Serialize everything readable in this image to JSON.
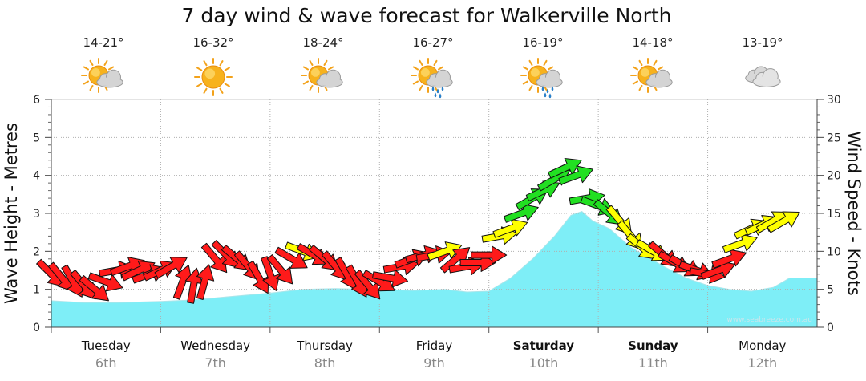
{
  "chart_data": {
    "type": "area",
    "title": "7 day wind & wave forecast for Walkerville North",
    "y_left_label": "Wave Height - Metres",
    "y_right_label": "Wind Speed - Knots",
    "y_left_range": [
      0,
      6
    ],
    "y_left_ticks": [
      "0",
      "1",
      "2",
      "3",
      "4",
      "5",
      "6"
    ],
    "y_right_range": [
      0,
      30
    ],
    "y_right_ticks": [
      "0",
      "5",
      "10",
      "15",
      "20",
      "25",
      "30"
    ],
    "grid": true,
    "watermark": "www.seabreeze.com.au",
    "days": [
      {
        "name": "Tuesday",
        "date": "6th",
        "bold": false,
        "temp": "14-21°",
        "weather": "partly-cloudy"
      },
      {
        "name": "Wednesday",
        "date": "7th",
        "bold": false,
        "temp": "16-32°",
        "weather": "sunny"
      },
      {
        "name": "Thursday",
        "date": "8th",
        "bold": false,
        "temp": "18-24°",
        "weather": "partly-cloudy"
      },
      {
        "name": "Friday",
        "date": "9th",
        "bold": false,
        "temp": "16-27°",
        "weather": "showers"
      },
      {
        "name": "Saturday",
        "date": "10th",
        "bold": true,
        "temp": "16-19°",
        "weather": "showers"
      },
      {
        "name": "Sunday",
        "date": "11th",
        "bold": true,
        "temp": "14-18°",
        "weather": "partly-cloudy"
      },
      {
        "name": "Monday",
        "date": "12th",
        "bold": false,
        "temp": "13-19°",
        "weather": "cloudy"
      }
    ],
    "wave_series": {
      "name": "Wave Height",
      "color": "#7eeef7",
      "x_days": [
        0,
        0.3,
        0.6,
        1.0,
        1.3,
        1.6,
        2.0,
        2.3,
        2.6,
        2.9,
        3.0,
        3.3,
        3.6,
        3.8,
        4.0,
        4.2,
        4.4,
        4.6,
        4.75,
        4.85,
        4.95,
        5.1,
        5.3,
        5.6,
        5.8,
        6.0,
        6.2,
        6.4,
        6.6,
        6.75
      ],
      "values": [
        0.7,
        0.65,
        0.65,
        0.68,
        0.72,
        0.8,
        0.9,
        1.0,
        1.02,
        1.0,
        1.0,
        0.97,
        1.0,
        0.93,
        0.95,
        1.3,
        1.8,
        2.4,
        2.95,
        3.05,
        2.8,
        2.6,
        2.1,
        1.6,
        1.3,
        1.1,
        1.0,
        0.95,
        1.05,
        1.3
      ]
    },
    "wind_series": {
      "name": "Wind",
      "unit": "knots",
      "color_scale": [
        {
          "max": 10,
          "color": "#ff1a1a"
        },
        {
          "max": 15,
          "color": "#ffff00"
        },
        {
          "max": 25,
          "color": "#22e022"
        }
      ],
      "points": [
        {
          "x": 0.0,
          "speed": 7,
          "dir": 315
        },
        {
          "x": 0.1,
          "speed": 6.5,
          "dir": 320
        },
        {
          "x": 0.2,
          "speed": 6,
          "dir": 330
        },
        {
          "x": 0.3,
          "speed": 5.5,
          "dir": 320
        },
        {
          "x": 0.4,
          "speed": 5,
          "dir": 310
        },
        {
          "x": 0.5,
          "speed": 6,
          "dir": 290
        },
        {
          "x": 0.6,
          "speed": 7.5,
          "dir": 260
        },
        {
          "x": 0.7,
          "speed": 8,
          "dir": 250
        },
        {
          "x": 0.8,
          "speed": 7.5,
          "dir": 245
        },
        {
          "x": 0.9,
          "speed": 7,
          "dir": 250
        },
        {
          "x": 1.0,
          "speed": 7.5,
          "dir": 245
        },
        {
          "x": 1.1,
          "speed": 8,
          "dir": 240
        },
        {
          "x": 1.2,
          "speed": 6,
          "dir": 200
        },
        {
          "x": 1.3,
          "speed": 5.5,
          "dir": 190
        },
        {
          "x": 1.4,
          "speed": 6,
          "dir": 195
        },
        {
          "x": 1.5,
          "speed": 9,
          "dir": 320
        },
        {
          "x": 1.6,
          "speed": 9.5,
          "dir": 315
        },
        {
          "x": 1.7,
          "speed": 9,
          "dir": 310
        },
        {
          "x": 1.8,
          "speed": 8,
          "dir": 320
        },
        {
          "x": 1.9,
          "speed": 6.5,
          "dir": 330
        },
        {
          "x": 2.0,
          "speed": 7,
          "dir": 340
        },
        {
          "x": 2.1,
          "speed": 7.5,
          "dir": 320
        },
        {
          "x": 2.2,
          "speed": 9,
          "dir": 300
        },
        {
          "x": 2.3,
          "speed": 10,
          "dir": 290
        },
        {
          "x": 2.4,
          "speed": 9.5,
          "dir": 300
        },
        {
          "x": 2.5,
          "speed": 9,
          "dir": 310
        },
        {
          "x": 2.6,
          "speed": 8,
          "dir": 320
        },
        {
          "x": 2.7,
          "speed": 7,
          "dir": 330
        },
        {
          "x": 2.8,
          "speed": 6,
          "dir": 330
        },
        {
          "x": 2.9,
          "speed": 5.5,
          "dir": 320
        },
        {
          "x": 3.0,
          "speed": 6,
          "dir": 300
        },
        {
          "x": 3.1,
          "speed": 6.5,
          "dir": 280
        },
        {
          "x": 3.2,
          "speed": 8,
          "dir": 260
        },
        {
          "x": 3.3,
          "speed": 9,
          "dir": 250
        },
        {
          "x": 3.4,
          "speed": 9.5,
          "dir": 255
        },
        {
          "x": 3.5,
          "speed": 9.5,
          "dir": 260
        },
        {
          "x": 3.6,
          "speed": 10,
          "dir": 250
        },
        {
          "x": 3.7,
          "speed": 9,
          "dir": 230
        },
        {
          "x": 3.8,
          "speed": 8,
          "dir": 260
        },
        {
          "x": 3.9,
          "speed": 8.5,
          "dir": 270
        },
        {
          "x": 4.0,
          "speed": 9.5,
          "dir": 270
        },
        {
          "x": 4.1,
          "speed": 12,
          "dir": 260
        },
        {
          "x": 4.2,
          "speed": 13,
          "dir": 250
        },
        {
          "x": 4.3,
          "speed": 15,
          "dir": 250
        },
        {
          "x": 4.4,
          "speed": 17,
          "dir": 240
        },
        {
          "x": 4.5,
          "speed": 18,
          "dir": 245
        },
        {
          "x": 4.6,
          "speed": 19.5,
          "dir": 240
        },
        {
          "x": 4.7,
          "speed": 21,
          "dir": 245
        },
        {
          "x": 4.8,
          "speed": 20,
          "dir": 250
        },
        {
          "x": 4.9,
          "speed": 17,
          "dir": 260
        },
        {
          "x": 5.0,
          "speed": 16,
          "dir": 290
        },
        {
          "x": 5.1,
          "speed": 15,
          "dir": 310
        },
        {
          "x": 5.2,
          "speed": 14,
          "dir": 320
        },
        {
          "x": 5.3,
          "speed": 12,
          "dir": 320
        },
        {
          "x": 5.4,
          "speed": 10.5,
          "dir": 310
        },
        {
          "x": 5.5,
          "speed": 10,
          "dir": 300
        },
        {
          "x": 5.6,
          "speed": 9.5,
          "dir": 310
        },
        {
          "x": 5.7,
          "speed": 8.5,
          "dir": 300
        },
        {
          "x": 5.8,
          "speed": 8,
          "dir": 300
        },
        {
          "x": 5.9,
          "speed": 7.5,
          "dir": 290
        },
        {
          "x": 6.0,
          "speed": 7,
          "dir": 280
        },
        {
          "x": 6.1,
          "speed": 7.5,
          "dir": 250
        },
        {
          "x": 6.2,
          "speed": 9,
          "dir": 250
        },
        {
          "x": 6.3,
          "speed": 11,
          "dir": 250
        },
        {
          "x": 6.4,
          "speed": 13,
          "dir": 245
        },
        {
          "x": 6.5,
          "speed": 13.5,
          "dir": 245
        },
        {
          "x": 6.6,
          "speed": 14,
          "dir": 240
        },
        {
          "x": 6.7,
          "speed": 14,
          "dir": 240
        }
      ]
    }
  }
}
